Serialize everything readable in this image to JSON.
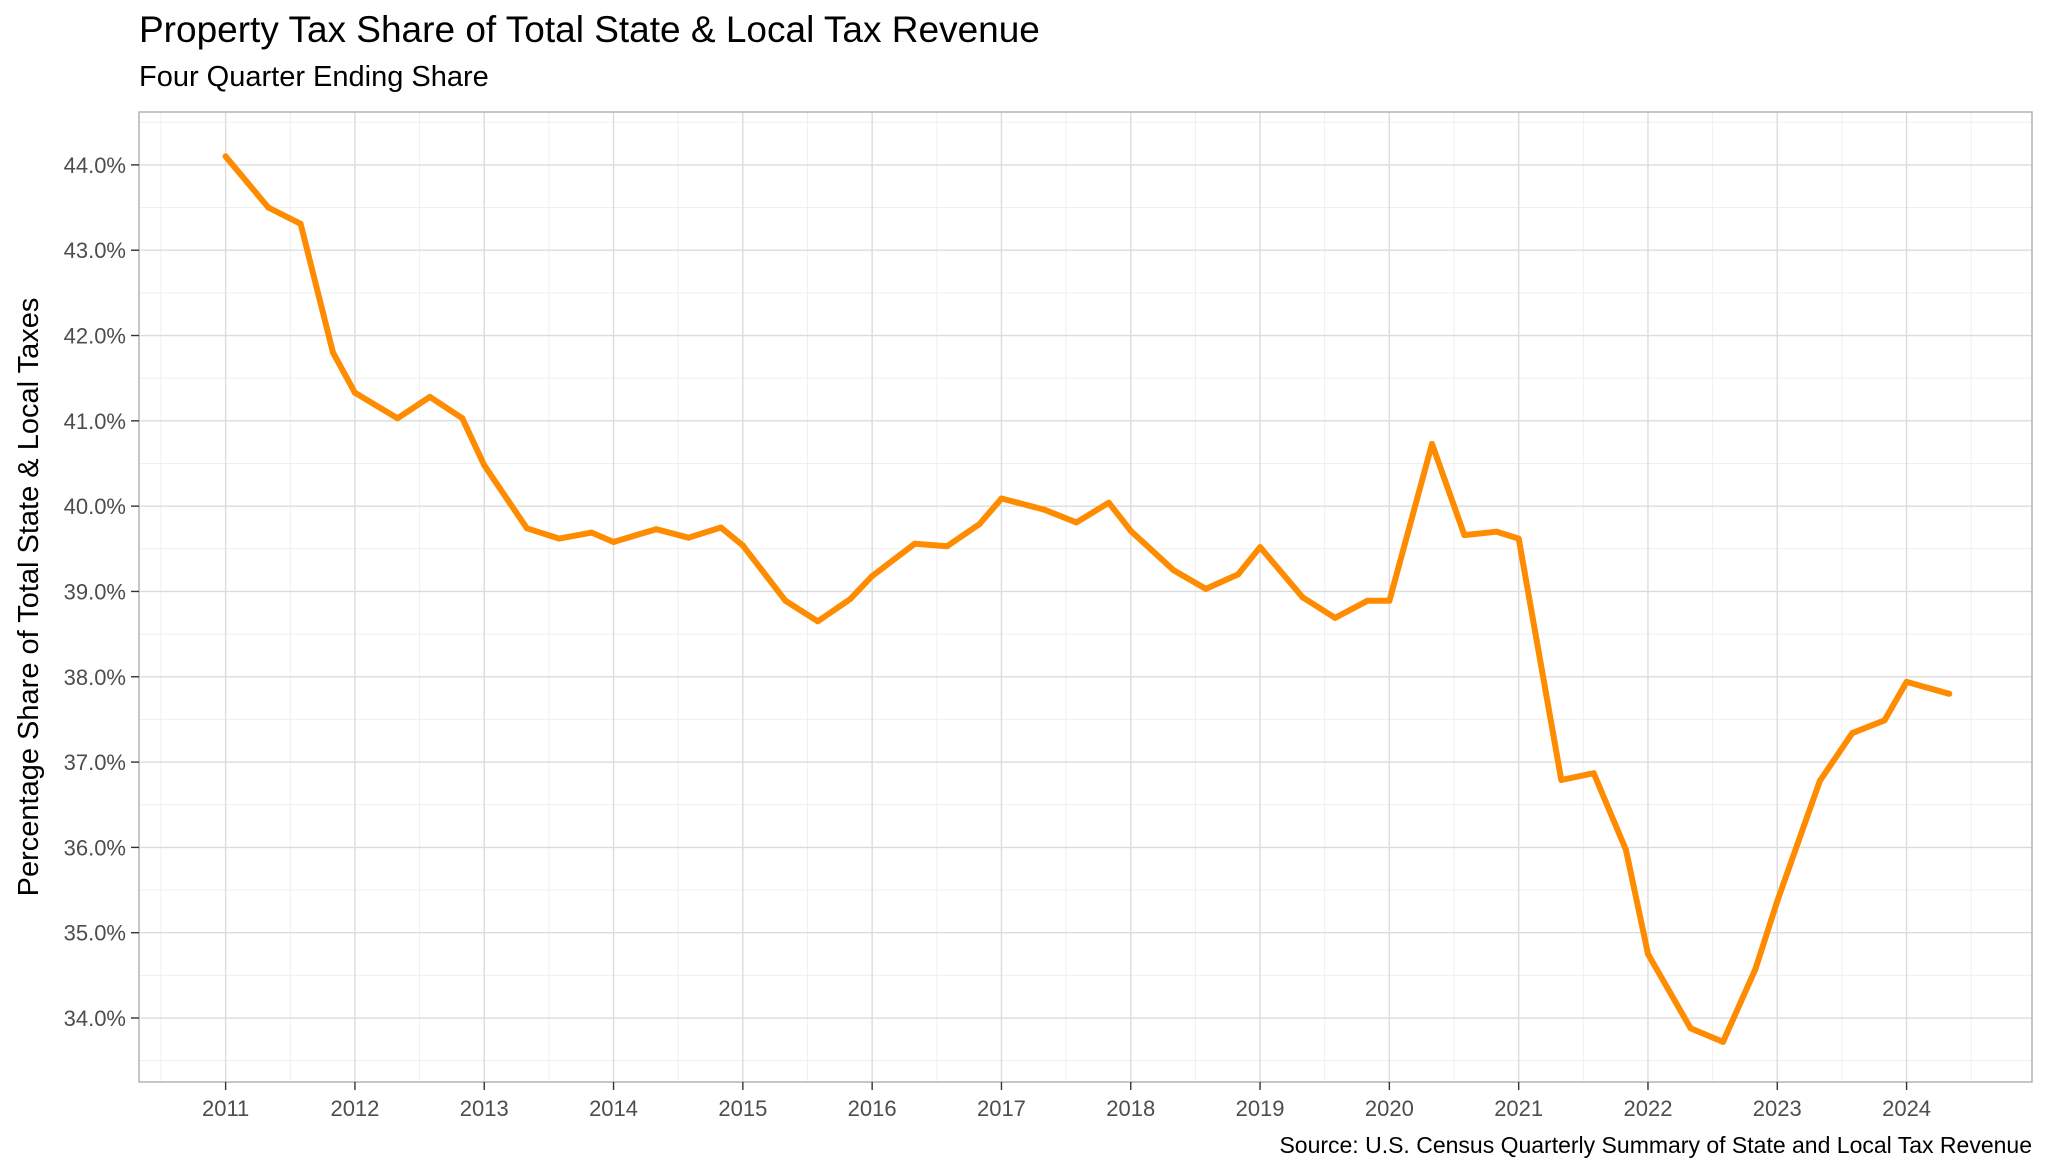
{
  "chart_data": {
    "type": "line",
    "title": "Property Tax Share of Total State & Local Tax Revenue",
    "subtitle": "Four Quarter Ending Share",
    "caption": "Source: U.S. Census Quarterly Summary of State and Local Tax Revenue",
    "xlabel": "",
    "ylabel": "Percentage Share of Total State & Local Taxes",
    "xlim": [
      2010.33,
      2024.97
    ],
    "ylim": [
      33.25,
      44.62
    ],
    "x_ticks": [
      2011,
      2012,
      2013,
      2014,
      2015,
      2016,
      2017,
      2018,
      2019,
      2020,
      2021,
      2022,
      2023,
      2024
    ],
    "x_tick_labels": [
      "2011",
      "2012",
      "2013",
      "2014",
      "2015",
      "2016",
      "2017",
      "2018",
      "2019",
      "2020",
      "2021",
      "2022",
      "2023",
      "2024"
    ],
    "y_ticks": [
      34,
      35,
      36,
      37,
      38,
      39,
      40,
      41,
      42,
      43,
      44
    ],
    "y_tick_labels": [
      "34.0%",
      "35.0%",
      "36.0%",
      "37.0%",
      "38.0%",
      "39.0%",
      "40.0%",
      "41.0%",
      "42.0%",
      "43.0%",
      "44.0%"
    ],
    "grid": true,
    "line_color": "#FF8C00",
    "series": [
      {
        "x": [
          2011.0,
          2011.33,
          2011.58,
          2011.83,
          2012.0,
          2012.33,
          2012.58,
          2012.83,
          2013.0,
          2013.33,
          2013.58,
          2013.83,
          2014.0,
          2014.33,
          2014.58,
          2014.83,
          2015.0,
          2015.33,
          2015.58,
          2015.83,
          2016.0,
          2016.33,
          2016.58,
          2016.83,
          2017.0,
          2017.33,
          2017.58,
          2017.83,
          2018.0,
          2018.33,
          2018.58,
          2018.83,
          2019.0,
          2019.33,
          2019.58,
          2019.83,
          2020.0,
          2020.33,
          2020.58,
          2020.83,
          2021.0,
          2021.33,
          2021.58,
          2021.83,
          2022.0,
          2022.33,
          2022.58,
          2022.83,
          2023.0,
          2023.33,
          2023.58,
          2023.83,
          2024.0,
          2024.33
        ],
        "values": [
          44.1,
          43.5,
          43.31,
          41.8,
          41.33,
          41.03,
          41.28,
          41.03,
          40.48,
          39.74,
          39.62,
          39.69,
          39.58,
          39.73,
          39.63,
          39.75,
          39.54,
          38.89,
          38.65,
          38.91,
          39.18,
          39.56,
          39.53,
          39.79,
          40.09,
          39.96,
          39.81,
          40.04,
          39.71,
          39.25,
          39.03,
          39.2,
          39.52,
          38.93,
          38.69,
          38.89,
          38.89,
          40.73,
          39.66,
          39.7,
          39.62,
          36.79,
          36.87,
          35.97,
          34.75,
          33.88,
          33.72,
          34.57,
          35.37,
          36.78,
          37.34,
          37.49,
          37.94,
          37.8
        ]
      }
    ]
  }
}
